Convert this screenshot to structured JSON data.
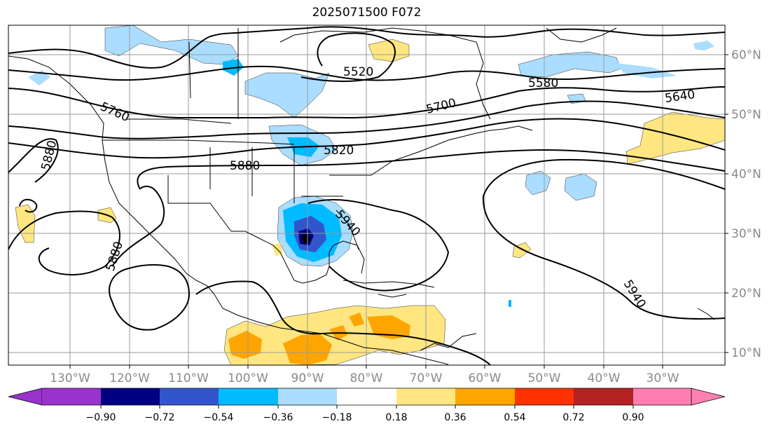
{
  "title": "2025071500 F072",
  "latitude_labels": [
    "60°N",
    "50°N",
    "40°N",
    "30°N",
    "20°N",
    "10°N"
  ],
  "longitude_labels": [
    "130°W",
    "120°W",
    "110°W",
    "100°W",
    "90°W",
    "80°W",
    "70°W",
    "60°W",
    "50°W",
    "40°W",
    "30°W"
  ],
  "contour_labels": [
    "5520",
    "5580",
    "5640",
    "5700",
    "5760",
    "5820",
    "5880",
    "5880",
    "5880",
    "5940",
    "5940"
  ],
  "colorbar": {
    "tick_labels": [
      "−0.90",
      "−0.72",
      "−0.54",
      "−0.36",
      "−0.18",
      "0.18",
      "0.36",
      "0.54",
      "0.72",
      "0.90"
    ],
    "colors": [
      "#9933cc",
      "#000080",
      "#3355cc",
      "#00bbff",
      "#aaddff",
      "#ffffff",
      "#ffe680",
      "#ffa500",
      "#ff3300",
      "#b22222",
      "#ff80b0"
    ]
  },
  "colors": {
    "contour": "#000000",
    "coastline": "#000000",
    "grid": "#9a9a9a",
    "tick_label": "#8a8a8a"
  }
}
